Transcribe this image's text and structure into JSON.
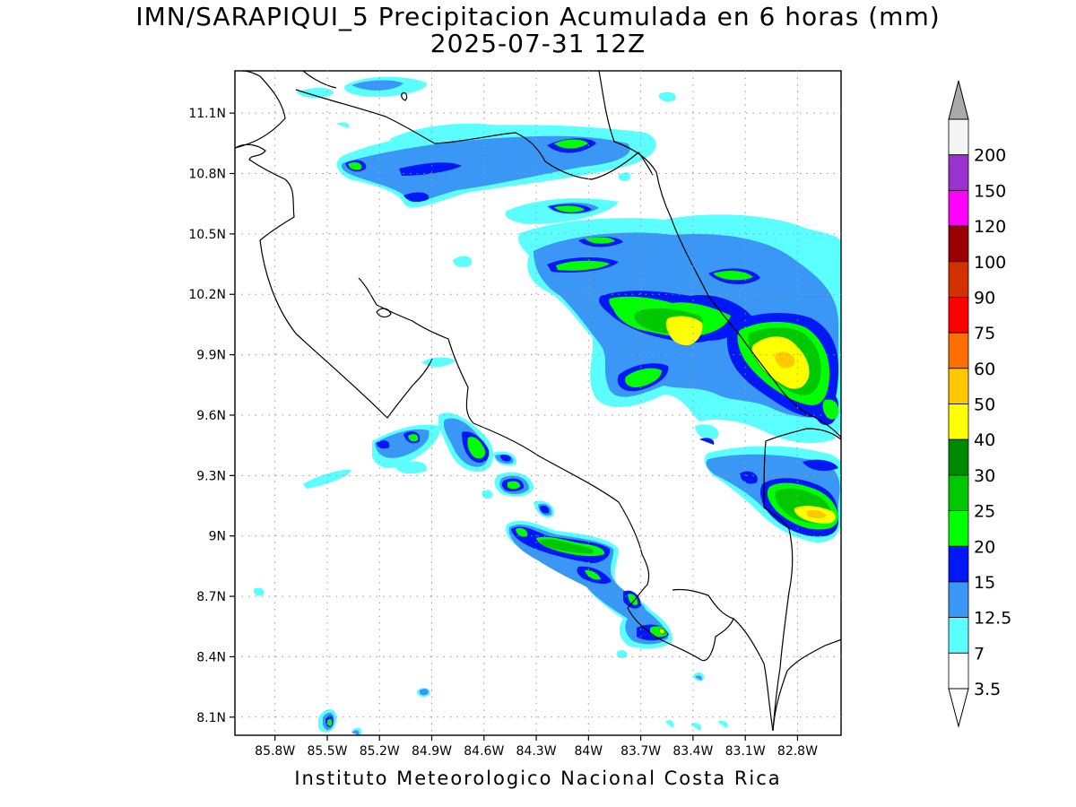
{
  "title_line1": "IMN/SARAPIQUI_5 Precipitacion Acumulada en 6 horas (mm)",
  "title_line2": "2025-07-31 12Z",
  "footer": "Instituto Meteorologico Nacional Costa Rica",
  "map": {
    "lon_range": [
      -86.03,
      -82.55
    ],
    "lat_range": [
      8.01,
      11.31
    ],
    "lat_ticks": [
      "11.1N",
      "10.8N",
      "10.5N",
      "10.2N",
      "9.9N",
      "9.6N",
      "9.3N",
      "9N",
      "8.7N",
      "8.4N",
      "8.1N"
    ],
    "lon_ticks": [
      "85.8W",
      "85.5W",
      "85.2W",
      "84.9W",
      "84.6W",
      "84.3W",
      "84W",
      "83.7W",
      "83.4W",
      "83.1W",
      "82.8W"
    ]
  },
  "colorbar": {
    "labels": [
      "3.5",
      "7",
      "12.5",
      "15",
      "20",
      "25",
      "30",
      "40",
      "50",
      "60",
      "75",
      "90",
      "100",
      "120",
      "150",
      "200"
    ],
    "colors": [
      "#ffffff",
      "#5cffff",
      "#3a97f5",
      "#0017f7",
      "#00ff00",
      "#00c800",
      "#008a00",
      "#ffff00",
      "#ffc800",
      "#ff6e00",
      "#ff0000",
      "#d23200",
      "#9a0000",
      "#ff00ff",
      "#9a32cd",
      "#f5f5f5"
    ],
    "top_arrow_color": "#aaaaaa",
    "bottom_arrow_color": "#ffffff"
  },
  "palette": {
    "c1": "#5cffff",
    "c2": "#3a97f5",
    "c3": "#0017f7",
    "c4": "#00ff00",
    "c5": "#00c800",
    "c6": "#ffff00",
    "c7": "#ffc800"
  }
}
